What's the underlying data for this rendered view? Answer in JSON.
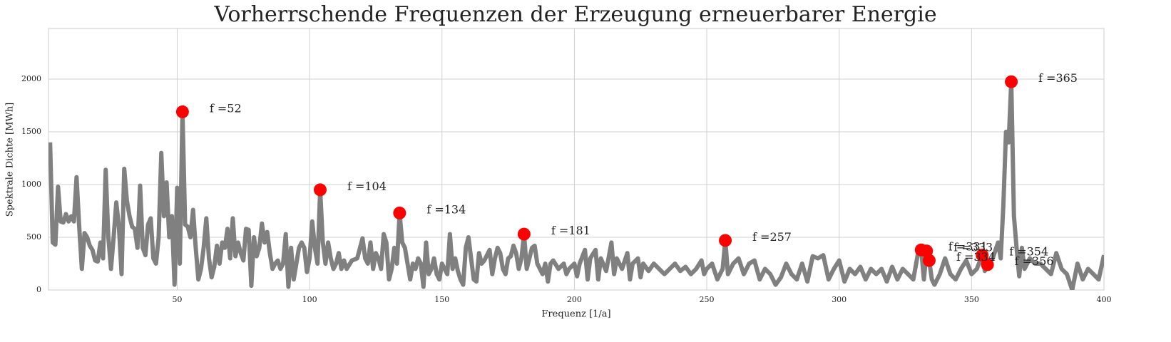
{
  "chart_data": {
    "type": "line",
    "title": "Vorherrschende Frequenzen der Erzeugung erneuerbarer Energie",
    "x_label": "Frequenz [1/a]",
    "y_label": "Spektrale Dichte [MWh]",
    "xlim": [
      1.4,
      400
    ],
    "ylim": [
      0,
      2480
    ],
    "xticks": [
      50,
      100,
      150,
      200,
      250,
      300,
      350,
      400
    ],
    "yticks": [
      0,
      500,
      1000,
      1500,
      2000
    ],
    "grid": true,
    "series": [
      {
        "color": "#808080",
        "x": [
          2,
          3,
          4,
          5,
          6,
          7,
          8,
          9,
          10,
          11,
          12,
          13,
          14,
          15,
          16,
          17,
          18,
          19,
          20,
          21,
          22,
          23,
          24,
          25,
          26,
          27,
          28,
          29,
          30,
          31,
          32,
          33,
          34,
          35,
          36,
          37,
          38,
          39,
          40,
          41,
          42,
          43,
          44,
          45,
          46,
          47,
          48,
          49,
          50,
          51,
          52,
          53,
          54,
          55,
          56,
          57,
          58,
          59,
          60,
          61,
          62,
          63,
          64,
          65,
          66,
          67,
          68,
          69,
          70,
          71,
          72,
          73,
          74,
          75,
          76,
          77,
          78,
          79,
          80,
          81,
          82,
          83,
          84,
          85,
          86,
          87,
          88,
          89,
          90,
          91,
          92,
          93,
          94,
          95,
          96,
          97,
          98,
          99,
          100,
          101,
          102,
          103,
          104,
          105,
          106,
          107,
          108,
          109,
          110,
          111,
          112,
          113,
          114,
          116,
          118,
          120,
          121,
          122,
          123,
          124,
          125,
          126,
          127,
          128,
          129,
          130,
          131,
          132,
          133,
          134,
          135,
          136,
          137,
          138,
          139,
          140,
          141,
          142,
          143,
          144,
          145,
          146,
          147,
          148,
          149,
          150,
          151,
          152,
          153,
          154,
          155,
          156,
          157,
          158,
          159,
          160,
          161,
          162,
          163,
          164,
          165,
          166,
          168,
          169,
          170,
          171,
          172,
          173,
          174,
          175,
          176,
          177,
          178,
          179,
          180,
          181,
          182,
          183,
          184,
          185,
          186,
          187,
          188,
          189,
          190,
          191,
          192,
          194,
          196,
          197,
          198,
          200,
          201,
          202,
          204,
          205,
          206,
          208,
          209,
          210,
          212,
          214,
          215,
          216,
          218,
          220,
          221,
          222,
          224,
          225,
          226,
          228,
          230,
          232,
          234,
          236,
          238,
          240,
          242,
          244,
          246,
          248,
          249,
          250,
          252,
          254,
          256,
          257,
          258,
          260,
          262,
          264,
          266,
          268,
          270,
          272,
          274,
          276,
          278,
          280,
          282,
          284,
          286,
          288,
          290,
          292,
          294,
          296,
          298,
          300,
          302,
          304,
          306,
          308,
          310,
          312,
          314,
          316,
          318,
          320,
          322,
          324,
          326,
          328,
          330,
          331,
          332,
          333,
          334,
          335,
          336,
          338,
          340,
          342,
          344,
          346,
          348,
          350,
          352,
          354,
          355,
          356,
          358,
          360,
          361,
          362,
          363,
          364,
          365,
          366,
          367,
          368,
          369,
          370,
          372,
          374,
          376,
          378,
          380,
          382,
          384,
          386,
          388,
          390,
          392,
          394,
          396,
          398,
          400
        ],
        "values": [
          1400,
          450,
          430,
          980,
          650,
          640,
          720,
          650,
          700,
          650,
          1070,
          600,
          200,
          540,
          500,
          420,
          380,
          280,
          270,
          450,
          300,
          1140,
          500,
          200,
          500,
          830,
          600,
          150,
          1150,
          850,
          700,
          600,
          580,
          400,
          990,
          400,
          330,
          620,
          680,
          300,
          250,
          500,
          1300,
          700,
          1020,
          500,
          700,
          50,
          970,
          250,
          1690,
          620,
          600,
          500,
          760,
          400,
          100,
          200,
          400,
          680,
          300,
          120,
          220,
          420,
          250,
          450,
          400,
          580,
          300,
          680,
          320,
          450,
          350,
          280,
          580,
          570,
          40,
          500,
          320,
          400,
          630,
          450,
          550,
          350,
          200,
          250,
          280,
          200,
          250,
          530,
          30,
          400,
          100,
          250,
          400,
          450,
          400,
          170,
          300,
          650,
          400,
          250,
          950,
          450,
          250,
          450,
          300,
          200,
          250,
          350,
          200,
          280,
          200,
          280,
          300,
          490,
          300,
          250,
          450,
          200,
          350,
          300,
          200,
          530,
          450,
          100,
          200,
          400,
          250,
          730,
          450,
          400,
          250,
          100,
          250,
          200,
          300,
          250,
          30,
          450,
          150,
          200,
          300,
          150,
          100,
          250,
          200,
          150,
          530,
          200,
          300,
          180,
          100,
          50,
          400,
          500,
          300,
          100,
          80,
          350,
          250,
          280,
          380,
          150,
          300,
          400,
          350,
          200,
          150,
          300,
          320,
          420,
          350,
          200,
          300,
          530,
          200,
          300,
          400,
          420,
          250,
          200,
          150,
          250,
          80,
          250,
          280,
          200,
          250,
          150,
          200,
          250,
          130,
          250,
          380,
          100,
          300,
          380,
          100,
          300,
          180,
          450,
          150,
          300,
          200,
          350,
          100,
          250,
          300,
          120,
          250,
          180,
          250,
          200,
          150,
          200,
          250,
          180,
          220,
          150,
          200,
          280,
          150,
          200,
          250,
          100,
          200,
          470,
          150,
          250,
          300,
          150,
          250,
          280,
          100,
          200,
          150,
          50,
          120,
          250,
          150,
          100,
          250,
          80,
          320,
          300,
          330,
          100,
          200,
          280,
          80,
          200,
          150,
          220,
          100,
          200,
          150,
          200,
          80,
          220,
          100,
          200,
          150,
          100,
          380,
          380,
          100,
          370,
          280,
          100,
          50,
          150,
          300,
          150,
          100,
          200,
          280,
          150,
          200,
          330,
          180,
          240,
          300,
          450,
          300,
          800,
          1500,
          1400,
          1975,
          700,
          400,
          130,
          400,
          200,
          300,
          250,
          250,
          200,
          150,
          350,
          200,
          150,
          0,
          250,
          100,
          200,
          150,
          100,
          330
        ]
      }
    ],
    "peaks": {
      "color": "#ff0000",
      "x": [
        52,
        104,
        134,
        181,
        257,
        331,
        333,
        334,
        354,
        356,
        365
      ],
      "values": [
        1690,
        950,
        730,
        530,
        470,
        380,
        370,
        280,
        330,
        240,
        1975
      ],
      "labels": [
        "f =52",
        "f =104",
        "f =134",
        "f =181",
        "f =257",
        "f =331",
        "f =333",
        "f =334",
        "f =354",
        "f =356",
        "f =365"
      ]
    }
  }
}
